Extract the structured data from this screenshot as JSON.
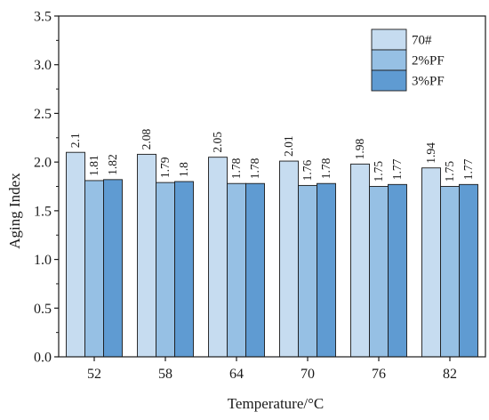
{
  "chart_data": {
    "type": "bar",
    "xlabel": "Temperature/°C",
    "ylabel": "Aging Index",
    "ylim": [
      0,
      3.5
    ],
    "yticks": [
      "0.0",
      "0.5",
      "1.0",
      "1.5",
      "2.0",
      "2.5",
      "3.0",
      "3.5"
    ],
    "categories": [
      "52",
      "58",
      "64",
      "70",
      "76",
      "82"
    ],
    "series": [
      {
        "name": "70#",
        "values": [
          2.1,
          2.08,
          2.05,
          2.01,
          1.98,
          1.94
        ],
        "labels": [
          "2.1",
          "2.08",
          "2.05",
          "2.01",
          "1.98",
          "1.94"
        ],
        "color": "#c6dcf0"
      },
      {
        "name": "2%PF",
        "values": [
          1.81,
          1.79,
          1.78,
          1.76,
          1.75,
          1.75
        ],
        "labels": [
          "1.81",
          "1.79",
          "1.78",
          "1.76",
          "1.75",
          "1.75"
        ],
        "color": "#96c0e4"
      },
      {
        "name": "3%PF",
        "values": [
          1.82,
          1.8,
          1.78,
          1.78,
          1.77,
          1.77
        ],
        "labels": [
          "1.82",
          "1.8",
          "1.78",
          "1.78",
          "1.77",
          "1.77"
        ],
        "color": "#5f9bd2"
      }
    ],
    "legend_position": "top-right",
    "grid": false
  }
}
